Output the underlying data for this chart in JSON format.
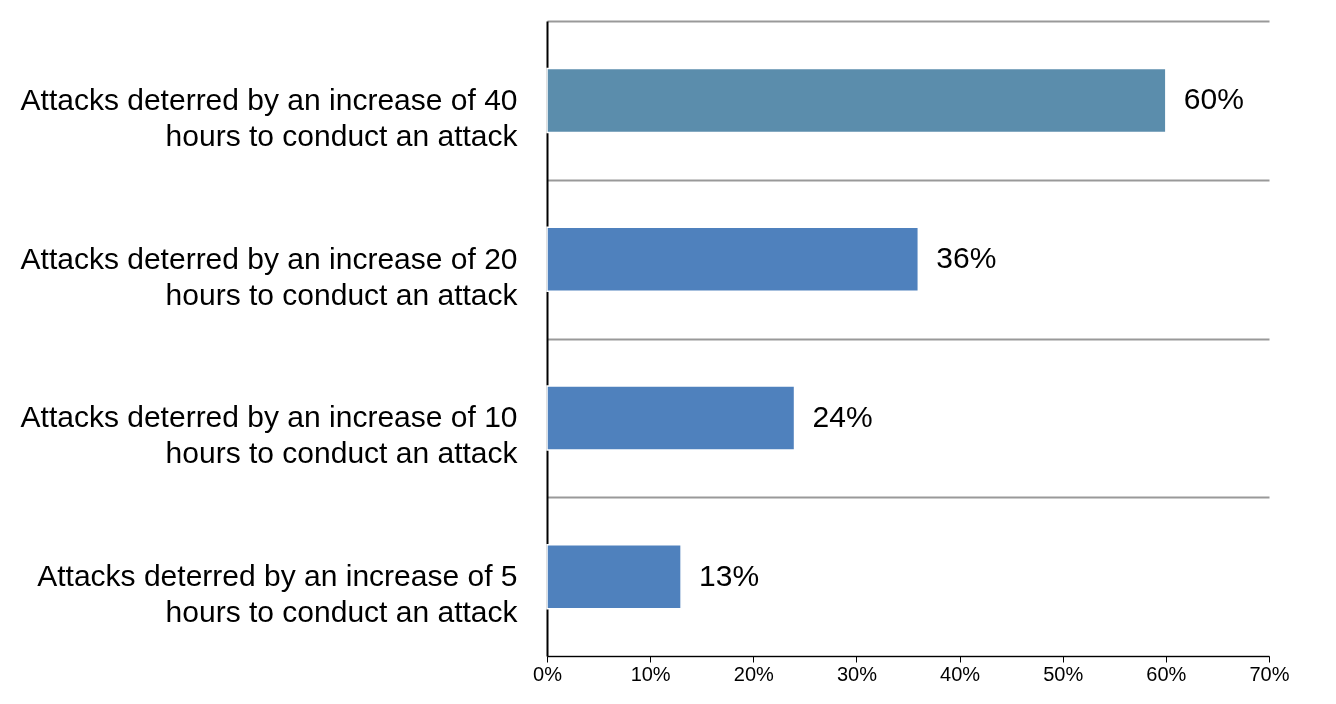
{
  "chart_data": {
    "type": "bar",
    "orientation": "horizontal",
    "categories": [
      "Attacks deterred by an increase of 40 hours to conduct an attack",
      "Attacks deterred by an increase of 20 hours to conduct an attack",
      "Attacks deterred by an increase of 10 hours to conduct an attack",
      "Attacks deterred by an increase of 5 hours to conduct an attack"
    ],
    "values": [
      60,
      36,
      24,
      13
    ],
    "colors": [
      "#5b8dac",
      "#4f81bd",
      "#4f81bd",
      "#4f81bd"
    ],
    "value_labels": [
      "60%",
      "36%",
      "24%",
      "13%"
    ],
    "xlim": [
      0,
      70
    ],
    "xticks": [
      {
        "value": 0,
        "label": "0%"
      },
      {
        "value": 10,
        "label": "10%"
      },
      {
        "value": 20,
        "label": "20%"
      },
      {
        "value": 30,
        "label": "30%"
      },
      {
        "value": 40,
        "label": "40%"
      },
      {
        "value": 50,
        "label": "50%"
      },
      {
        "value": 60,
        "label": "60%"
      },
      {
        "value": 70,
        "label": "70%"
      }
    ],
    "grid": "y"
  }
}
